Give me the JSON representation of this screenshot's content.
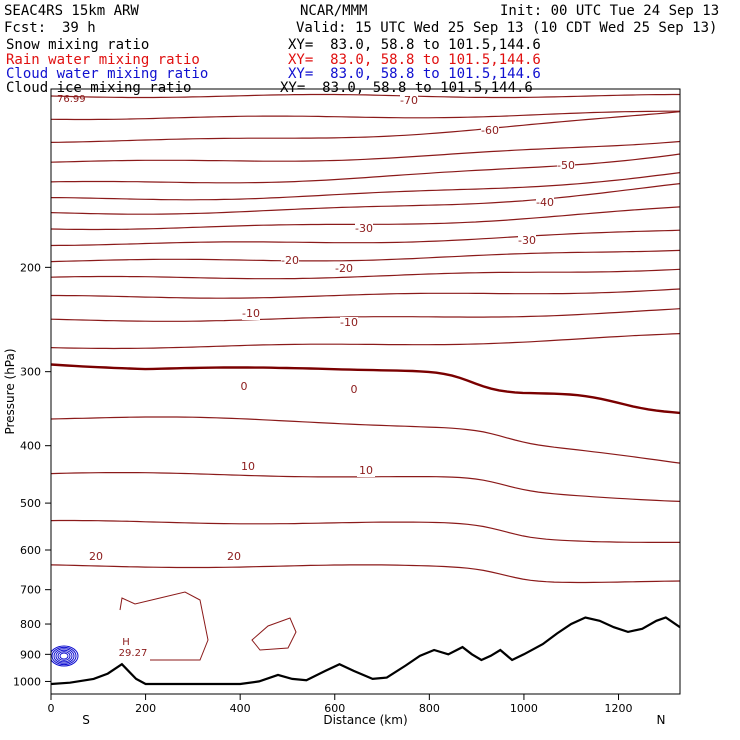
{
  "header": {
    "model": "SEAC4RS 15km ARW",
    "center": "NCAR/MMM",
    "init": "Init: 00 UTC Tue 24 Sep 13",
    "fcst_label": "Fcst:",
    "fcst_value": "39 h",
    "valid": "Valid: 15 UTC Wed 25 Sep 13 (10 CDT Wed 25 Sep 13)"
  },
  "fields": [
    {
      "label": "Snow mixing ratio",
      "xy": "XY=  83.0, 58.8 to 101.5,144.6",
      "color": "#000000"
    },
    {
      "label": "Rain water mixing ratio",
      "xy": "XY=  83.0, 58.8 to 101.5,144.6",
      "color": "#e01010"
    },
    {
      "label": "Cloud water mixing ratio",
      "xy": "XY=  83.0, 58.8 to 101.5,144.6",
      "color": "#1010d0"
    },
    {
      "label": "Cloud ice mixing ratio",
      "xy": "XY=  83.0, 58.8 to 101.5,144.6",
      "color": "#000000"
    }
  ],
  "colors": {
    "temperature": "#8b1a1a",
    "freezing": "#7a0000",
    "terrain": "#000000",
    "cloud_water": "#1010d0"
  },
  "chart_data": {
    "type": "line",
    "xlabel": "Distance (km)",
    "ylabel": "Pressure (hPa)",
    "xlim": [
      0,
      1330
    ],
    "ylim_top": 100,
    "ylim_bottom": 1050,
    "y_scale": "log",
    "x_ticks": [
      0,
      200,
      400,
      600,
      800,
      1000,
      1200
    ],
    "y_ticks": [
      200,
      300,
      400,
      500,
      600,
      700,
      800,
      900,
      1000
    ],
    "x_endpoint_labels": [
      "S",
      "N"
    ],
    "temperature_contours": [
      {
        "label": "-70",
        "at_km": 760
      },
      {
        "label": "-60",
        "at_km": 920
      },
      {
        "label": "-50",
        "at_km": 1090
      },
      {
        "label": "-40",
        "at_km": 1040
      },
      {
        "label": "-30",
        "at_km": 480
      },
      {
        "label": "-30",
        "at_km": 1000
      },
      {
        "label": "-20",
        "at_km": 500
      },
      {
        "label": "-20",
        "at_km": 615
      },
      {
        "label": "-10",
        "at_km": 400
      },
      {
        "label": "-10",
        "at_km": 625
      },
      {
        "label": "0",
        "at_km": 405
      },
      {
        "label": "0",
        "at_km": 640
      },
      {
        "label": "10",
        "at_km": 405
      },
      {
        "label": "10",
        "at_km": 665
      },
      {
        "label": "20",
        "at_km": 95
      },
      {
        "label": "20",
        "at_km": 390
      }
    ],
    "annotations": [
      "76.99",
      "H",
      "29.27"
    ],
    "terrain_profile": [
      [
        0,
        1010
      ],
      [
        40,
        1005
      ],
      [
        90,
        990
      ],
      [
        120,
        970
      ],
      [
        150,
        935
      ],
      [
        180,
        990
      ],
      [
        200,
        1010
      ],
      [
        400,
        1010
      ],
      [
        440,
        1000
      ],
      [
        480,
        975
      ],
      [
        510,
        990
      ],
      [
        540,
        995
      ],
      [
        580,
        960
      ],
      [
        610,
        935
      ],
      [
        640,
        960
      ],
      [
        680,
        990
      ],
      [
        710,
        985
      ],
      [
        750,
        940
      ],
      [
        780,
        905
      ],
      [
        810,
        885
      ],
      [
        840,
        900
      ],
      [
        870,
        875
      ],
      [
        890,
        900
      ],
      [
        910,
        920
      ],
      [
        930,
        905
      ],
      [
        950,
        885
      ],
      [
        975,
        920
      ],
      [
        1000,
        900
      ],
      [
        1040,
        865
      ],
      [
        1070,
        830
      ],
      [
        1100,
        800
      ],
      [
        1130,
        780
      ],
      [
        1160,
        790
      ],
      [
        1190,
        810
      ],
      [
        1220,
        825
      ],
      [
        1250,
        815
      ],
      [
        1280,
        790
      ],
      [
        1300,
        780
      ],
      [
        1330,
        810
      ]
    ]
  }
}
